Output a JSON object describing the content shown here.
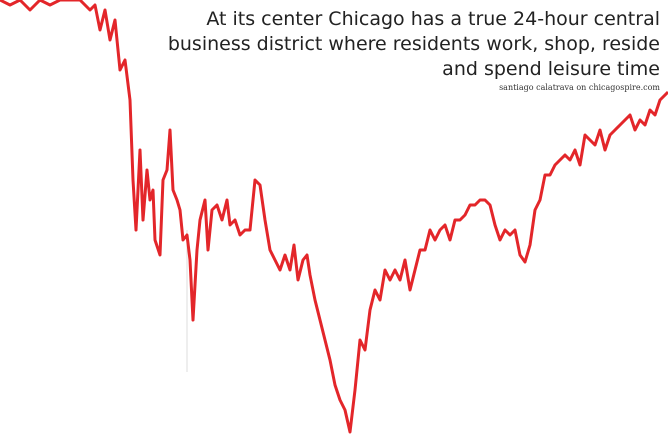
{
  "quote": {
    "lines": [
      "At its center Chicago has a true 24-hour central",
      "business district where residents work, shop, reside",
      "and spend leisure time"
    ],
    "attribution": "santiago calatrava on chicagospire.com"
  }
}
